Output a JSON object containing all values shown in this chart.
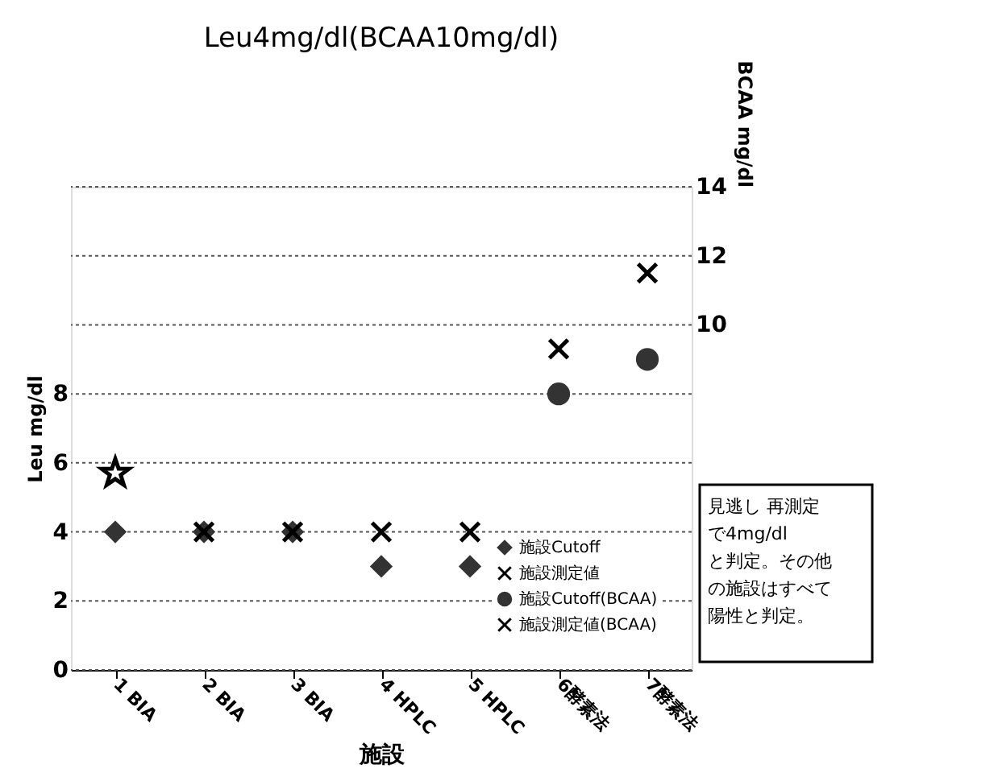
{
  "chart_data": {
    "type": "scatter",
    "title": "Leu4mg/dl(BCAA10mg/dl)",
    "xlabel": "施設",
    "ylabel": "Leu mg/dl",
    "y2label": "BCAA mg/dl",
    "categories": [
      "1 BIA",
      "2 BIA",
      "3 BIA",
      "4 HPLC",
      "5 HPLC",
      "6酵素法",
      "7酵素法"
    ],
    "series": [
      {
        "name": "施設Cutoff",
        "color": "#333333",
        "marker": "diamond",
        "values": [
          4,
          4,
          4,
          3,
          3,
          null,
          null
        ]
      },
      {
        "name": "施設測定値",
        "color": "#000000",
        "marker": "cross",
        "values": [
          null,
          4,
          4,
          4,
          4,
          null,
          null
        ]
      },
      {
        "name": "施設Cutoff(BCAA)",
        "color": "#333333",
        "marker": "circle",
        "values": [
          null,
          null,
          null,
          null,
          null,
          8,
          9
        ]
      },
      {
        "name": "施設測定値(BCAA)",
        "color": "#000000",
        "marker": "cross",
        "values": [
          null,
          null,
          null,
          null,
          null,
          9.3,
          11.5
        ]
      },
      {
        "color": "#000000",
        "marker": "star",
        "values": [
          5.7,
          null,
          null,
          null,
          null,
          null,
          null
        ]
      }
    ],
    "ylim": [
      0,
      14
    ],
    "yticks": [
      0,
      2,
      4,
      6,
      8
    ],
    "y2lim": [
      0,
      14
    ],
    "y2ticks": [
      10,
      12,
      14
    ],
    "grid": true,
    "legend": "bottom right",
    "annotations": [
      "見逃し 再測定で4mg/dlと判定。その他の施設はすべて陽性と判定。"
    ]
  }
}
